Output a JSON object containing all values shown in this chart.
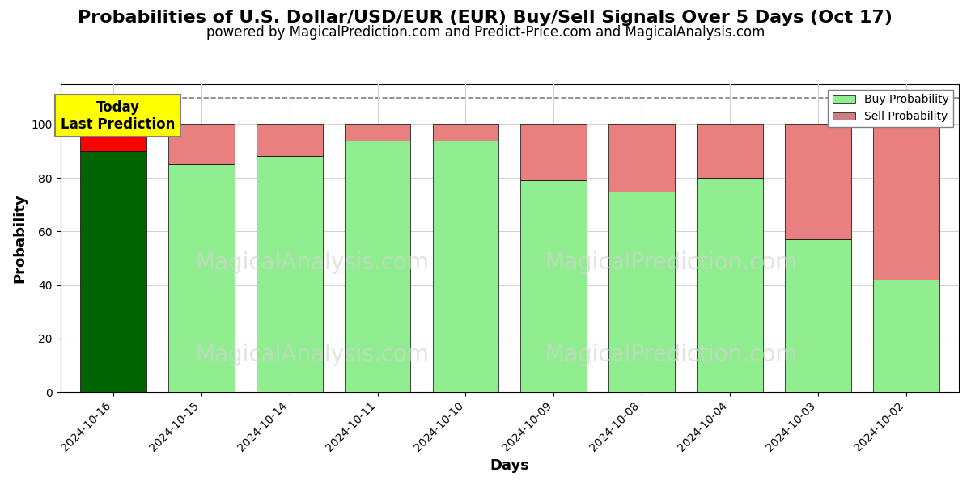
{
  "title": "Probabilities of U.S. Dollar/USD/EUR (EUR) Buy/Sell Signals Over 5 Days (Oct 17)",
  "subtitle": "powered by MagicalPrediction.com and Predict-Price.com and MagicalAnalysis.com",
  "xlabel": "Days",
  "ylabel": "Probability",
  "categories": [
    "2024-10-16",
    "2024-10-15",
    "2024-10-14",
    "2024-10-11",
    "2024-10-10",
    "2024-10-09",
    "2024-10-08",
    "2024-10-04",
    "2024-10-03",
    "2024-10-02"
  ],
  "buy_values": [
    90,
    85,
    88,
    94,
    94,
    79,
    75,
    80,
    57,
    42
  ],
  "sell_values": [
    10,
    15,
    12,
    6,
    6,
    21,
    25,
    20,
    43,
    58
  ],
  "buy_color_first": "#006400",
  "buy_color_rest": "#90EE90",
  "sell_color_first": "#FF0000",
  "sell_color_rest": "#E88080",
  "dashed_line_y": 110,
  "ylim": [
    0,
    115
  ],
  "yticks": [
    0,
    20,
    40,
    60,
    80,
    100
  ],
  "legend_buy_color": "#90EE90",
  "legend_sell_color": "#CD8080",
  "watermark_left_text": "MagicalAnalysis.com",
  "watermark_right_text": "MagicalPrediction.com",
  "annotation_text": "Today\nLast Prediction",
  "annotation_bg": "#FFFF00",
  "annotation_fontsize": 12,
  "title_fontsize": 16,
  "subtitle_fontsize": 12,
  "axis_label_fontsize": 13,
  "tick_fontsize": 10
}
